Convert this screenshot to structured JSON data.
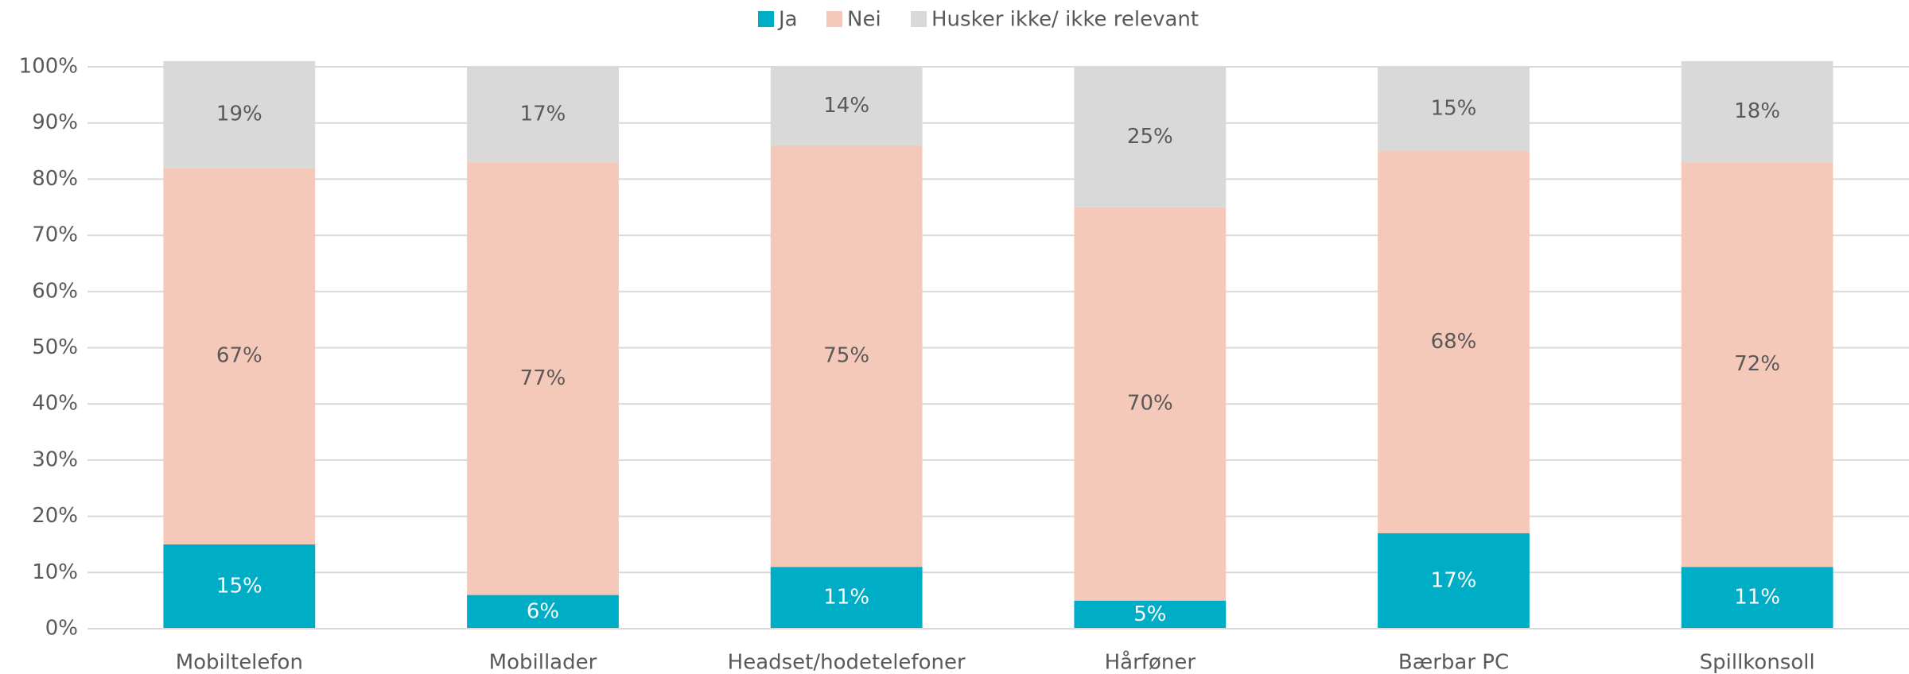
{
  "chart_data": {
    "type": "stacked_bar",
    "categories": [
      "Mobiltelefon",
      "Mobillader",
      "Headset/hodetelefoner",
      "Hårføner",
      "Bærbar PC",
      "Spillkonsoll"
    ],
    "series": [
      {
        "name": "Ja",
        "color": "#00adc6",
        "values": [
          15,
          6,
          11,
          5,
          17,
          11
        ],
        "value_labels": [
          "15%",
          "6%",
          "11%",
          "5%",
          "17%",
          "11%"
        ]
      },
      {
        "name": "Nei",
        "color": "#f5c9b9",
        "values": [
          67,
          77,
          75,
          70,
          68,
          72
        ],
        "value_labels": [
          "67%",
          "77%",
          "75%",
          "70%",
          "68%",
          "72%"
        ]
      },
      {
        "name": "Husker ikke/ ikke relevant",
        "color": "#d9d9d9",
        "values": [
          19,
          17,
          14,
          25,
          15,
          18
        ],
        "value_labels": [
          "19%",
          "17%",
          "14%",
          "25%",
          "15%",
          "18%"
        ]
      }
    ],
    "ylim": [
      0,
      100
    ],
    "yticks": [
      {
        "value": 0,
        "label": "0%"
      },
      {
        "value": 10,
        "label": "10%"
      },
      {
        "value": 20,
        "label": "20%"
      },
      {
        "value": 30,
        "label": "30%"
      },
      {
        "value": 40,
        "label": "40%"
      },
      {
        "value": 50,
        "label": "50%"
      },
      {
        "value": 60,
        "label": "60%"
      },
      {
        "value": 70,
        "label": "70%"
      },
      {
        "value": 80,
        "label": "80%"
      },
      {
        "value": 90,
        "label": "90%"
      },
      {
        "value": 100,
        "label": "100%"
      }
    ],
    "grid": true,
    "legend": "top"
  }
}
